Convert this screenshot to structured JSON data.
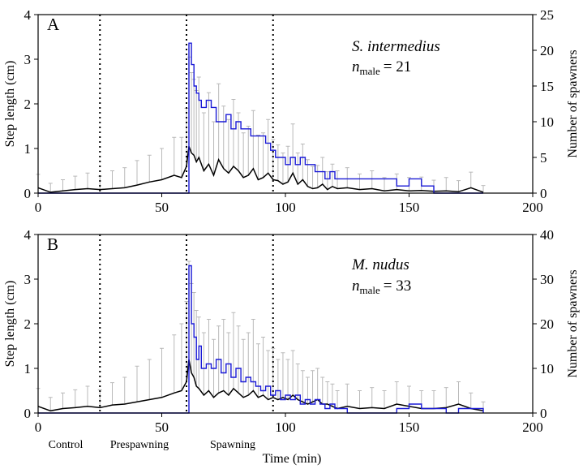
{
  "figure": {
    "xlabel": "Time (min)",
    "left_ylabel": "Step length (cm)",
    "right_ylabel": "Number of spawners",
    "phase_labels": [
      "Control",
      "Prespawning",
      "Spawning"
    ],
    "phase_boundaries_min": [
      25,
      60,
      95
    ],
    "colors": {
      "mean": "#000000",
      "error_bars": "#b9b9b9",
      "spawners": "#1a1ad6",
      "phase_lines": "#000000"
    }
  },
  "chart_data": [
    {
      "type": "line",
      "panel": "A",
      "species": "S. intermedius",
      "n_label": "n",
      "n_sub": "male",
      "n_value": "= 21",
      "xlabel": "",
      "ylabel": "Step length (cm)",
      "y2label": "Number of spawners",
      "xlim": [
        0,
        200
      ],
      "ylim": [
        0,
        4
      ],
      "y2lim": [
        0,
        25
      ],
      "xticks": [
        "0",
        "50",
        "100",
        "150",
        "200"
      ],
      "yticks": [
        "0",
        "1",
        "2",
        "3",
        "4"
      ],
      "y2ticks": [
        "0",
        "5",
        "10",
        "15",
        "20",
        "25"
      ],
      "series": [
        {
          "axis": "left",
          "style": "black line with grey SD error bars",
          "x": [
            0,
            5,
            10,
            15,
            20,
            25,
            30,
            35,
            40,
            45,
            50,
            55,
            58,
            60,
            61,
            62,
            63,
            64,
            65,
            67,
            69,
            71,
            73,
            75,
            77,
            79,
            81,
            83,
            85,
            87,
            89,
            91,
            93,
            95,
            97,
            99,
            101,
            103,
            105,
            107,
            109,
            111,
            113,
            115,
            117,
            119,
            121,
            125,
            130,
            135,
            140,
            145,
            150,
            155,
            160,
            165,
            170,
            175,
            180
          ],
          "y": [
            0.12,
            0.02,
            0.05,
            0.08,
            0.1,
            0.08,
            0.1,
            0.12,
            0.18,
            0.25,
            0.3,
            0.4,
            0.35,
            0.6,
            1.05,
            0.9,
            0.85,
            0.7,
            0.8,
            0.5,
            0.65,
            0.4,
            0.75,
            0.55,
            0.45,
            0.6,
            0.5,
            0.35,
            0.4,
            0.55,
            0.3,
            0.35,
            0.45,
            0.3,
            0.28,
            0.2,
            0.25,
            0.45,
            0.2,
            0.3,
            0.15,
            0.1,
            0.12,
            0.2,
            0.08,
            0.15,
            0.1,
            0.12,
            0.08,
            0.1,
            0.05,
            0.08,
            0.05,
            0.06,
            0.04,
            0.05,
            0.03,
            0.12,
            0.02
          ],
          "err": [
            0.3,
            0.2,
            0.25,
            0.3,
            0.35,
            0.3,
            0.4,
            0.45,
            0.55,
            0.6,
            0.7,
            0.85,
            0.9,
            1.3,
            2.0,
            1.8,
            1.7,
            1.6,
            1.8,
            1.3,
            1.6,
            1.2,
            1.7,
            1.4,
            1.2,
            1.5,
            1.3,
            1.0,
            1.1,
            1.3,
            1.0,
            1.0,
            1.2,
            0.9,
            0.8,
            0.7,
            0.8,
            1.1,
            0.7,
            0.8,
            0.6,
            0.5,
            0.5,
            0.6,
            0.4,
            0.5,
            0.4,
            0.45,
            0.35,
            0.4,
            0.3,
            0.35,
            0.3,
            0.3,
            0.25,
            0.3,
            0.25,
            0.35,
            0.15
          ]
        },
        {
          "name": "spawners",
          "axis": "right",
          "style": "blue step line",
          "x": [
            0,
            60,
            61,
            62,
            63,
            64,
            65,
            66,
            68,
            70,
            72,
            74,
            76,
            78,
            80,
            82,
            84,
            86,
            88,
            90,
            92,
            94,
            96,
            98,
            100,
            102,
            104,
            106,
            108,
            110,
            112,
            114,
            116,
            118,
            120,
            130,
            140,
            145,
            150,
            155,
            160,
            170,
            180
          ],
          "y": [
            0,
            0,
            21,
            18,
            15,
            14,
            13,
            12,
            13,
            12,
            10,
            10,
            11,
            9,
            10,
            9,
            9,
            8,
            8,
            8,
            7,
            6,
            5,
            5,
            4,
            5,
            4,
            5,
            4,
            4,
            3,
            3,
            2,
            3,
            2,
            2,
            2,
            1,
            2,
            1,
            0,
            0,
            0
          ]
        }
      ]
    },
    {
      "type": "line",
      "panel": "B",
      "species": "M. nudus",
      "n_label": "n",
      "n_sub": "male",
      "n_value": "= 33",
      "xlabel": "Time (min)",
      "ylabel": "Step length (cm)",
      "y2label": "Number of spawners",
      "xlim": [
        0,
        200
      ],
      "ylim": [
        0,
        4
      ],
      "y2lim": [
        0,
        40
      ],
      "xticks": [
        "0",
        "50",
        "100",
        "150",
        "200"
      ],
      "yticks": [
        "0",
        "1",
        "2",
        "3",
        "4"
      ],
      "y2ticks": [
        "0",
        "10",
        "20",
        "30",
        "40"
      ],
      "series": [
        {
          "axis": "left",
          "style": "black line with grey SD error bars",
          "x": [
            0,
            5,
            10,
            15,
            20,
            25,
            30,
            35,
            40,
            45,
            50,
            55,
            58,
            60,
            61,
            62,
            63,
            64,
            65,
            67,
            69,
            71,
            73,
            75,
            77,
            79,
            81,
            83,
            85,
            87,
            89,
            91,
            93,
            95,
            97,
            99,
            101,
            103,
            105,
            107,
            109,
            111,
            113,
            115,
            117,
            119,
            121,
            125,
            130,
            135,
            140,
            145,
            150,
            155,
            160,
            165,
            170,
            175,
            180
          ],
          "y": [
            0.15,
            0.05,
            0.1,
            0.12,
            0.15,
            0.12,
            0.18,
            0.2,
            0.25,
            0.3,
            0.35,
            0.45,
            0.5,
            0.7,
            1.2,
            0.9,
            0.8,
            0.6,
            0.55,
            0.4,
            0.5,
            0.35,
            0.45,
            0.5,
            0.4,
            0.55,
            0.45,
            0.35,
            0.4,
            0.5,
            0.35,
            0.4,
            0.3,
            0.35,
            0.3,
            0.35,
            0.3,
            0.4,
            0.3,
            0.25,
            0.2,
            0.25,
            0.3,
            0.2,
            0.2,
            0.15,
            0.1,
            0.15,
            0.1,
            0.12,
            0.1,
            0.2,
            0.15,
            0.1,
            0.1,
            0.12,
            0.2,
            0.1,
            0.05
          ],
          "err": [
            0.4,
            0.3,
            0.35,
            0.4,
            0.45,
            0.4,
            0.5,
            0.6,
            0.8,
            0.9,
            1.1,
            1.3,
            1.5,
            1.8,
            2.2,
            2.0,
            1.9,
            1.7,
            1.6,
            1.4,
            1.6,
            1.3,
            1.5,
            1.6,
            1.4,
            1.7,
            1.5,
            1.3,
            1.4,
            1.6,
            1.2,
            1.3,
            1.1,
            1.1,
            0.9,
            1.0,
            0.9,
            1.0,
            0.8,
            0.7,
            0.6,
            0.7,
            0.7,
            0.6,
            0.5,
            0.5,
            0.4,
            0.5,
            0.4,
            0.45,
            0.4,
            0.5,
            0.45,
            0.4,
            0.4,
            0.45,
            0.5,
            0.35,
            0.2
          ]
        },
        {
          "name": "spawners",
          "axis": "right",
          "style": "blue step line",
          "x": [
            0,
            60,
            61,
            62,
            63,
            64,
            65,
            66,
            68,
            70,
            72,
            74,
            76,
            78,
            80,
            82,
            84,
            86,
            88,
            90,
            92,
            94,
            96,
            98,
            100,
            102,
            104,
            106,
            108,
            110,
            112,
            114,
            116,
            118,
            120,
            125,
            130,
            140,
            145,
            150,
            155,
            160,
            165,
            170,
            175,
            180
          ],
          "y": [
            0,
            0,
            33,
            20,
            17,
            12,
            15,
            10,
            11,
            10,
            12,
            9,
            11,
            8,
            10,
            7,
            8,
            7,
            6,
            5,
            6,
            4,
            5,
            3,
            4,
            3,
            4,
            2,
            3,
            2,
            3,
            2,
            1,
            2,
            1,
            0,
            0,
            0,
            1,
            2,
            1,
            1,
            0,
            1,
            1,
            0
          ]
        }
      ]
    }
  ]
}
